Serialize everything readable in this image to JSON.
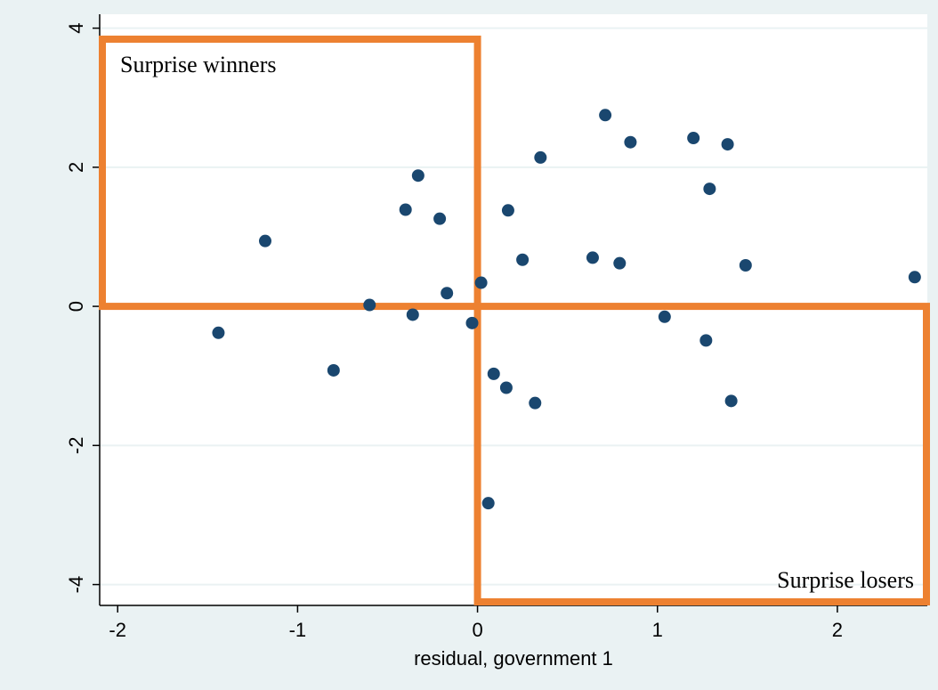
{
  "chart_data": {
    "type": "scatter",
    "title": "",
    "xlabel": "residual, government 1",
    "ylabel": "",
    "xlim": [
      -2.1,
      2.5
    ],
    "ylim": [
      -4.3,
      4.2
    ],
    "x_ticks": [
      -2,
      -1,
      0,
      1,
      2
    ],
    "x_tick_labels": [
      "-2",
      "-1",
      "0",
      "1",
      "2"
    ],
    "y_ticks": [
      -4,
      -2,
      0,
      2,
      4
    ],
    "y_tick_labels": [
      "-4",
      "-2",
      "0",
      "2",
      "4"
    ],
    "grid": "horizontal",
    "legend": "none",
    "points": [
      [
        -1.44,
        -0.38
      ],
      [
        -1.18,
        0.94
      ],
      [
        -0.8,
        -0.92
      ],
      [
        -0.6,
        0.02
      ],
      [
        -0.4,
        1.39
      ],
      [
        -0.36,
        -0.12
      ],
      [
        -0.33,
        1.88
      ],
      [
        -0.21,
        1.26
      ],
      [
        -0.17,
        0.19
      ],
      [
        -0.03,
        -0.24
      ],
      [
        0.02,
        0.34
      ],
      [
        0.06,
        -2.83
      ],
      [
        0.09,
        -0.97
      ],
      [
        0.16,
        -1.17
      ],
      [
        0.17,
        1.38
      ],
      [
        0.25,
        0.67
      ],
      [
        0.32,
        -1.39
      ],
      [
        0.35,
        2.14
      ],
      [
        0.64,
        0.7
      ],
      [
        0.71,
        2.75
      ],
      [
        0.79,
        0.62
      ],
      [
        0.85,
        2.36
      ],
      [
        1.04,
        -0.15
      ],
      [
        1.2,
        2.42
      ],
      [
        1.27,
        -0.49
      ],
      [
        1.29,
        1.69
      ],
      [
        1.39,
        2.33
      ],
      [
        1.41,
        -1.36
      ],
      [
        1.49,
        0.59
      ],
      [
        2.43,
        0.42
      ]
    ],
    "regions": [
      {
        "label": "Surprise winners",
        "x": [
          -2.1,
          0
        ],
        "y": [
          0,
          4.2
        ]
      },
      {
        "label": "Surprise losers",
        "x": [
          0,
          2.5
        ],
        "y": [
          -4.3,
          0
        ]
      }
    ],
    "colors": {
      "frame_background": "#eaf2f3",
      "plot_background": "#ffffff",
      "marker": "#1a476f",
      "region_box": "#ed8131",
      "grid": "#eaf2f3"
    }
  }
}
